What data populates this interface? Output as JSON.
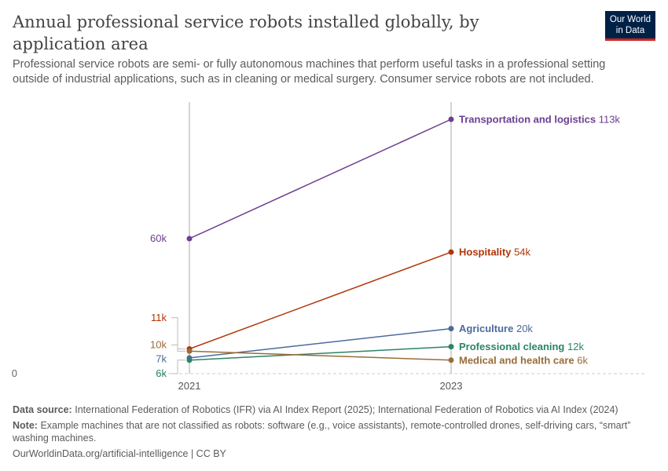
{
  "header": {
    "title": "Annual professional service robots installed globally, by application area",
    "subtitle": "Professional service robots are semi- or fully autonomous machines that perform useful tasks in a professional setting outside of industrial applications, such as in cleaning or medical surgery. Consumer service robots are not included.",
    "logo": "Our World in Data"
  },
  "chart_data": {
    "type": "line",
    "x": [
      2021,
      2023
    ],
    "ylim": [
      0,
      113000
    ],
    "y_zero_label": "0",
    "series": [
      {
        "name": "Transportation and logistics",
        "values": [
          60000,
          113000
        ],
        "labels": [
          "60k",
          "113k"
        ],
        "color": "#6d3e91"
      },
      {
        "name": "Hospitality",
        "values": [
          11000,
          54000
        ],
        "labels": [
          "11k",
          "54k"
        ],
        "color": "#b13507"
      },
      {
        "name": "Agriculture",
        "values": [
          7000,
          20000
        ],
        "labels": [
          "7k",
          "20k"
        ],
        "color": "#4c6a9c"
      },
      {
        "name": "Professional cleaning",
        "values": [
          6000,
          12000
        ],
        "labels": [
          "6k",
          "12k"
        ],
        "color": "#2c8465"
      },
      {
        "name": "Medical and health care",
        "values": [
          10000,
          6000
        ],
        "labels": [
          "10k",
          "6k"
        ],
        "color": "#986d39"
      }
    ]
  },
  "footer": {
    "source_label": "Data source:",
    "source": "International Federation of Robotics (IFR) via AI Index Report (2025); International Federation of Robotics via AI Index (2024)",
    "note_label": "Note:",
    "note": "Example machines that are not classified as robots: software (e.g., voice assistants), remote-controlled drones, self-driving cars, “smart” washing machines.",
    "license": "OurWorldinData.org/artificial-intelligence | CC BY"
  }
}
